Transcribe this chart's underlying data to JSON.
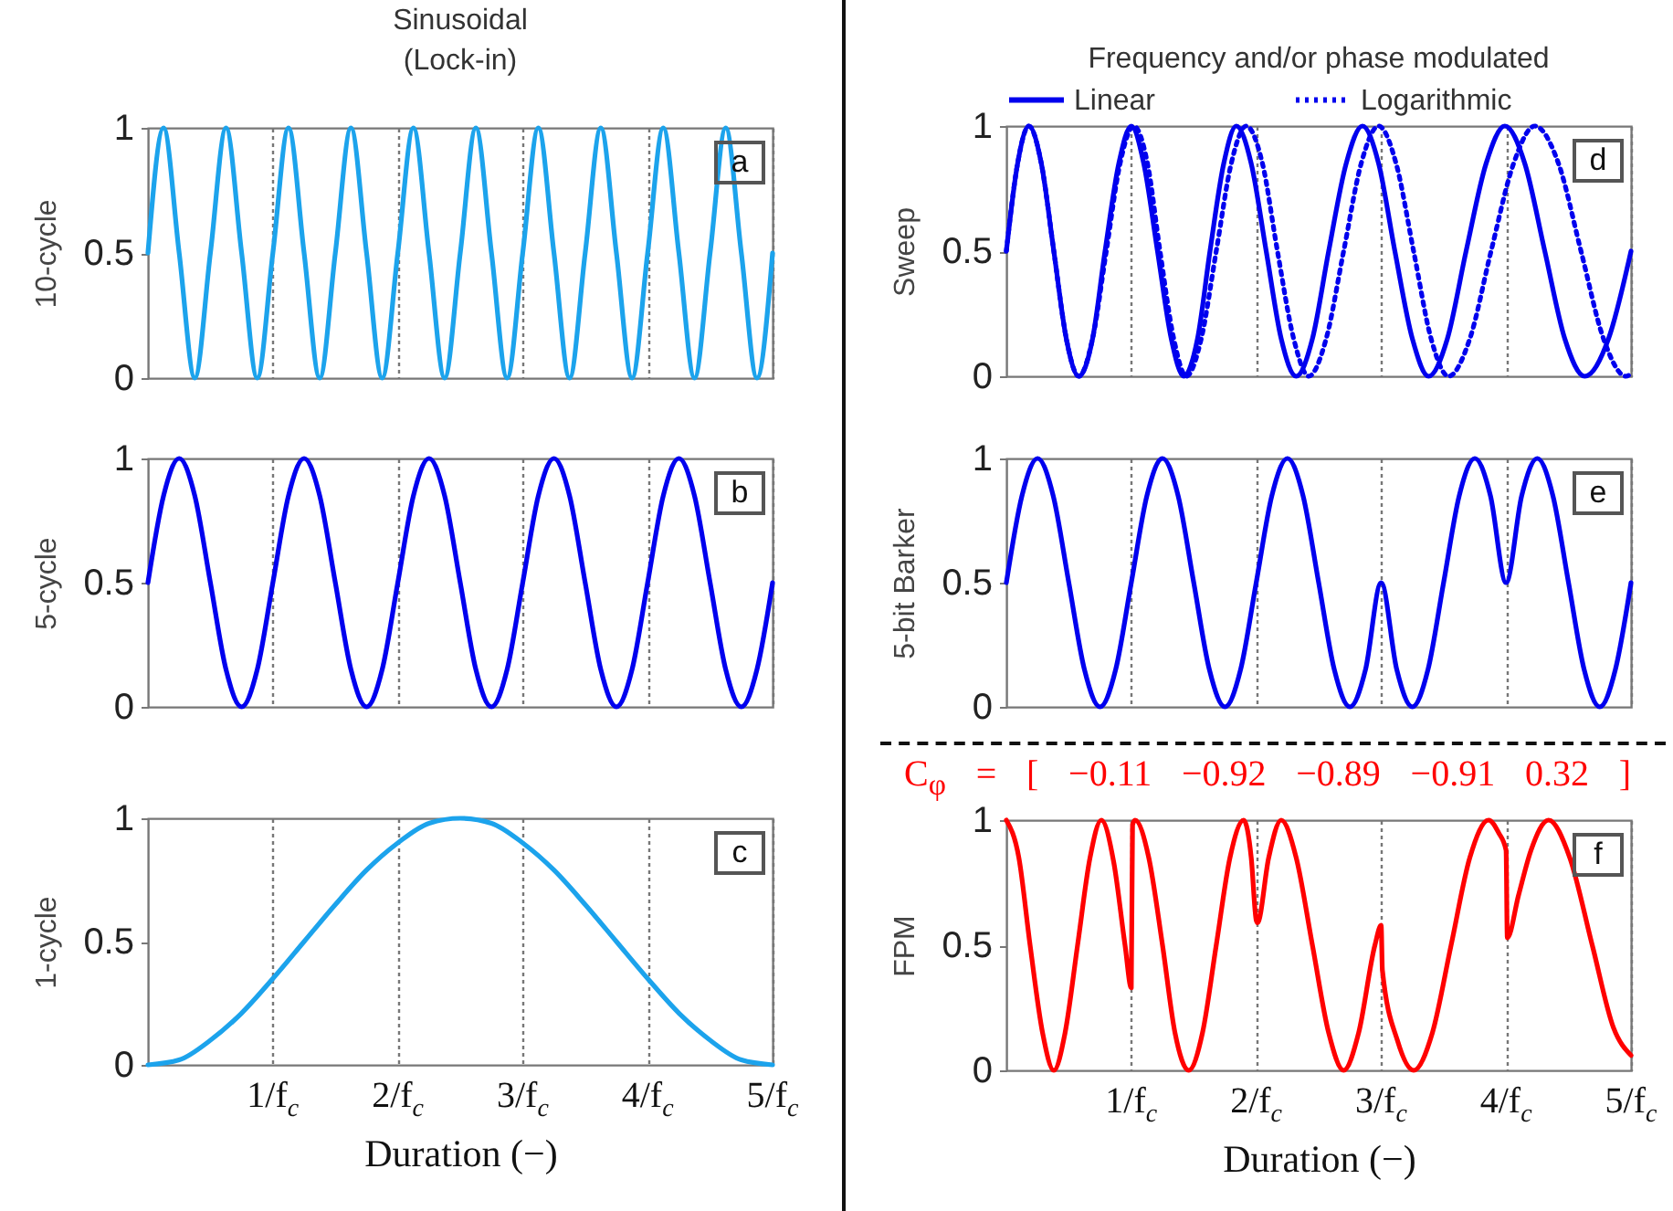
{
  "chart_data": [
    {
      "type": "line",
      "title": "Sinusoidal (Lock-in)",
      "ylabel": "10-cycle",
      "annotations": [
        "a"
      ],
      "xlim": [
        0,
        5
      ],
      "ylim": [
        0,
        1
      ],
      "yticks": [
        0,
        0.5,
        1
      ],
      "xticks": [
        {
          "value": 1,
          "label": null
        },
        {
          "value": 2,
          "label": null
        },
        {
          "value": 3,
          "label": null
        },
        {
          "value": 4,
          "label": null
        },
        {
          "value": 5,
          "label": null
        }
      ],
      "tick_labels": "y",
      "grid": "x",
      "legend": false,
      "series": [
        {
          "color": "#1ca3ec",
          "x": [
            0,
            0.125,
            0.25,
            0.375,
            0.5,
            0.625,
            0.75,
            0.875,
            1,
            1.125,
            1.25,
            1.375,
            1.5,
            1.625,
            1.75,
            1.875,
            2,
            2.125,
            2.25,
            2.375,
            2.5,
            2.625,
            2.75,
            2.875,
            3,
            3.125,
            3.25,
            3.375,
            3.5,
            3.625,
            3.75,
            3.875,
            4,
            4.125,
            4.25,
            4.375,
            4.5,
            4.625,
            4.75,
            4.875,
            5
          ],
          "values": [
            0.5,
            1,
            0.5,
            0,
            0.5,
            1,
            0.5,
            0,
            0.5,
            1,
            0.5,
            0,
            0.5,
            1,
            0.5,
            0,
            0.5,
            1,
            0.5,
            0,
            0.5,
            1,
            0.5,
            0,
            0.5,
            1,
            0.5,
            0,
            0.5,
            1,
            0.5,
            0,
            0.5,
            1,
            0.5,
            0,
            0.5,
            1,
            0.5,
            0,
            0.5
          ]
        }
      ]
    },
    {
      "type": "line",
      "ylabel": "5-cycle",
      "annotations": [
        "b"
      ],
      "xlim": [
        0,
        5
      ],
      "ylim": [
        0,
        1
      ],
      "yticks": [
        0,
        0.5,
        1
      ],
      "xticks": [
        {
          "value": 1,
          "label": null
        },
        {
          "value": 2,
          "label": null
        },
        {
          "value": 3,
          "label": null
        },
        {
          "value": 4,
          "label": null
        },
        {
          "value": 5,
          "label": null
        }
      ],
      "tick_labels": "y",
      "grid": "x",
      "legend": false,
      "series": [
        {
          "color": "#0000ee",
          "x": [
            0,
            0.125,
            0.25,
            0.375,
            0.5,
            0.625,
            0.75,
            0.875,
            1,
            1.125,
            1.25,
            1.375,
            1.5,
            1.625,
            1.75,
            1.875,
            2,
            2.125,
            2.25,
            2.375,
            2.5,
            2.625,
            2.75,
            2.875,
            3,
            3.125,
            3.25,
            3.375,
            3.5,
            3.625,
            3.75,
            3.875,
            4,
            4.125,
            4.25,
            4.375,
            4.5,
            4.625,
            4.75,
            4.875,
            5
          ],
          "values": [
            0.5,
            0.85,
            1,
            0.85,
            0.5,
            0.15,
            0,
            0.15,
            0.5,
            0.85,
            1,
            0.85,
            0.5,
            0.15,
            0,
            0.15,
            0.5,
            0.85,
            1,
            0.85,
            0.5,
            0.15,
            0,
            0.15,
            0.5,
            0.85,
            1,
            0.85,
            0.5,
            0.15,
            0,
            0.15,
            0.5,
            0.85,
            1,
            0.85,
            0.5,
            0.15,
            0,
            0.15,
            0.5
          ]
        }
      ]
    },
    {
      "type": "line",
      "ylabel": "1-cycle",
      "xlabel": "Duration (−)",
      "annotations": [
        "c"
      ],
      "xlim": [
        0,
        5
      ],
      "ylim": [
        0,
        1
      ],
      "yticks": [
        0,
        0.5,
        1
      ],
      "xticks": [
        {
          "value": 1,
          "label": "1/f$_{c}$"
        },
        {
          "value": 2,
          "label": "2/f$_{c}$"
        },
        {
          "value": 3,
          "label": "3/f$_{c}$"
        },
        {
          "value": 4,
          "label": "4/f$_{c}$"
        },
        {
          "value": 5,
          "label": "5/f$_{c}$"
        }
      ],
      "grid": "x",
      "legend": false,
      "series": [
        {
          "color": "#1ca3ec",
          "x": [
            0,
            0.25,
            0.5,
            0.75,
            1,
            1.25,
            1.5,
            1.75,
            2,
            2.25,
            2.5,
            2.75,
            3,
            3.25,
            3.5,
            3.75,
            4,
            4.25,
            4.5,
            4.75,
            5
          ],
          "values": [
            0,
            0.02,
            0.1,
            0.21,
            0.35,
            0.5,
            0.65,
            0.79,
            0.9,
            0.98,
            1,
            0.98,
            0.9,
            0.79,
            0.65,
            0.5,
            0.35,
            0.21,
            0.1,
            0.02,
            0
          ]
        }
      ]
    },
    {
      "type": "line",
      "title": "Frequency and/or phase modulated",
      "ylabel": "Sweep",
      "annotations": [
        "d"
      ],
      "xlim": [
        0,
        5
      ],
      "ylim": [
        0,
        1
      ],
      "yticks": [
        0,
        0.5,
        1
      ],
      "xticks": [
        {
          "value": 1,
          "label": null
        },
        {
          "value": 2,
          "label": null
        },
        {
          "value": 3,
          "label": null
        },
        {
          "value": 4,
          "label": null
        },
        {
          "value": 5,
          "label": null
        }
      ],
      "tick_labels": "y",
      "grid": "x",
      "legend": "top",
      "series": [
        {
          "name": "Linear",
          "color": "#0000ee",
          "x": [
            0,
            0.09,
            0.18,
            0.28,
            0.38,
            0.48,
            0.58,
            0.69,
            0.79,
            0.9,
            1,
            1.1,
            1.21,
            1.32,
            1.42,
            1.53,
            1.63,
            1.74,
            1.84,
            1.96,
            2.08,
            2.2,
            2.32,
            2.45,
            2.58,
            2.72,
            2.85,
            2.98,
            3.11,
            3.25,
            3.38,
            3.53,
            3.68,
            3.84,
            3.99,
            4.15,
            4.31,
            4.47,
            4.63,
            4.82,
            5
          ],
          "values": [
            0.5,
            0.85,
            1,
            0.85,
            0.5,
            0.15,
            0,
            0.15,
            0.5,
            0.85,
            1,
            0.85,
            0.5,
            0.15,
            0,
            0.15,
            0.5,
            0.85,
            1,
            0.85,
            0.5,
            0.15,
            0,
            0.15,
            0.5,
            0.85,
            1,
            0.85,
            0.5,
            0.15,
            0,
            0.15,
            0.5,
            0.85,
            1,
            0.85,
            0.5,
            0.15,
            0,
            0.15,
            0.5
          ]
        },
        {
          "name": "Logarithmic",
          "color": "#0000ee",
          "line_style": "dotted",
          "x": [
            0,
            0.09,
            0.18,
            0.28,
            0.38,
            0.48,
            0.58,
            0.69,
            0.8,
            0.91,
            1.02,
            1.13,
            1.23,
            1.34,
            1.44,
            1.56,
            1.68,
            1.8,
            1.92,
            2.05,
            2.17,
            2.3,
            2.42,
            2.56,
            2.7,
            2.84,
            2.98,
            3.12,
            3.26,
            3.4,
            3.54,
            3.71,
            3.88,
            4.06,
            4.23,
            4.42,
            4.6,
            4.78,
            4.96,
            5
          ],
          "values": [
            0.5,
            0.85,
            1,
            0.85,
            0.5,
            0.15,
            0,
            0.15,
            0.5,
            0.85,
            1,
            0.85,
            0.5,
            0.15,
            0,
            0.15,
            0.5,
            0.85,
            1,
            0.85,
            0.5,
            0.15,
            0,
            0.15,
            0.5,
            0.85,
            1,
            0.85,
            0.5,
            0.15,
            0,
            0.15,
            0.5,
            0.85,
            1,
            0.85,
            0.5,
            0.15,
            0,
            0.01
          ]
        }
      ]
    },
    {
      "type": "line",
      "ylabel": "5-bit Barker",
      "annotations": [
        "e"
      ],
      "xlim": [
        0,
        5
      ],
      "ylim": [
        0,
        1
      ],
      "yticks": [
        0,
        0.5,
        1
      ],
      "xticks": [
        {
          "value": 1,
          "label": null
        },
        {
          "value": 2,
          "label": null
        },
        {
          "value": 3,
          "label": null
        },
        {
          "value": 4,
          "label": null
        },
        {
          "value": 5,
          "label": null
        }
      ],
      "tick_labels": "y",
      "grid": "x",
      "legend": false,
      "series": [
        {
          "color": "#0000ee",
          "x": [
            0,
            0.125,
            0.25,
            0.375,
            0.5,
            0.625,
            0.75,
            0.875,
            1,
            1.125,
            1.25,
            1.375,
            1.5,
            1.625,
            1.75,
            1.875,
            2,
            2.125,
            2.25,
            2.375,
            2.5,
            2.625,
            2.75,
            2.875,
            3,
            3.125,
            3.25,
            3.375,
            3.5,
            3.625,
            3.75,
            3.875,
            4,
            4.125,
            4.25,
            4.375,
            4.5,
            4.625,
            4.75,
            4.875,
            5
          ],
          "values": [
            0.5,
            0.85,
            1,
            0.85,
            0.5,
            0.15,
            0,
            0.15,
            0.5,
            0.85,
            1,
            0.85,
            0.5,
            0.15,
            0,
            0.15,
            0.5,
            0.85,
            1,
            0.85,
            0.5,
            0.15,
            0,
            0.15,
            0.5,
            0.15,
            0,
            0.15,
            0.5,
            0.85,
            1,
            0.85,
            0.5,
            0.85,
            1,
            0.85,
            0.5,
            0.15,
            0,
            0.15,
            0.5
          ]
        }
      ]
    },
    {
      "type": "line",
      "ylabel": "FPM",
      "xlabel": "Duration (−)",
      "annotations": [
        "f",
        "C$_{φ}$ = [ −0.11 −0.92 −0.89 −0.91 0.32 ]"
      ],
      "xlim": [
        0,
        5
      ],
      "ylim": [
        0,
        1
      ],
      "yticks": [
        0,
        0.5,
        1
      ],
      "xticks": [
        {
          "value": 1,
          "label": "1/f$_{c}$"
        },
        {
          "value": 2,
          "label": "2/f$_{c}$"
        },
        {
          "value": 3,
          "label": "3/f$_{c}$"
        },
        {
          "value": 4,
          "label": "4/f$_{c}$"
        },
        {
          "value": 5,
          "label": "5/f$_{c}$"
        }
      ],
      "grid": "x",
      "legend": false,
      "series": [
        {
          "color": "#ff0000",
          "x": [
            0,
            0.1,
            0.19,
            0.29,
            0.38,
            0.47,
            0.57,
            0.67,
            0.76,
            0.86,
            0.95,
            1,
            1.01,
            1.03,
            1.14,
            1.25,
            1.35,
            1.46,
            1.57,
            1.68,
            1.79,
            1.9,
            1.96,
            2,
            2.01,
            2.1,
            2.2,
            2.32,
            2.45,
            2.58,
            2.7,
            2.82,
            2.95,
            3,
            3.01,
            3.13,
            3.26,
            3.41,
            3.56,
            3.71,
            3.86,
            3.94,
            4,
            4.01,
            4.1,
            4.2,
            4.34,
            4.51,
            4.69,
            4.86,
            5
          ],
          "values": [
            1,
            0.85,
            0.5,
            0.15,
            0,
            0.15,
            0.5,
            0.85,
            1,
            0.83,
            0.5,
            0.33,
            0.98,
            1,
            0.85,
            0.5,
            0.15,
            0,
            0.15,
            0.5,
            0.85,
            1,
            0.85,
            0.6,
            0.59,
            0.85,
            1,
            0.85,
            0.5,
            0.15,
            0,
            0.15,
            0.5,
            0.58,
            0.4,
            0.12,
            0,
            0.15,
            0.5,
            0.85,
            1,
            0.95,
            0.88,
            0.53,
            0.7,
            0.88,
            1,
            0.85,
            0.5,
            0.17,
            0.06
          ]
        }
      ]
    }
  ]
}
